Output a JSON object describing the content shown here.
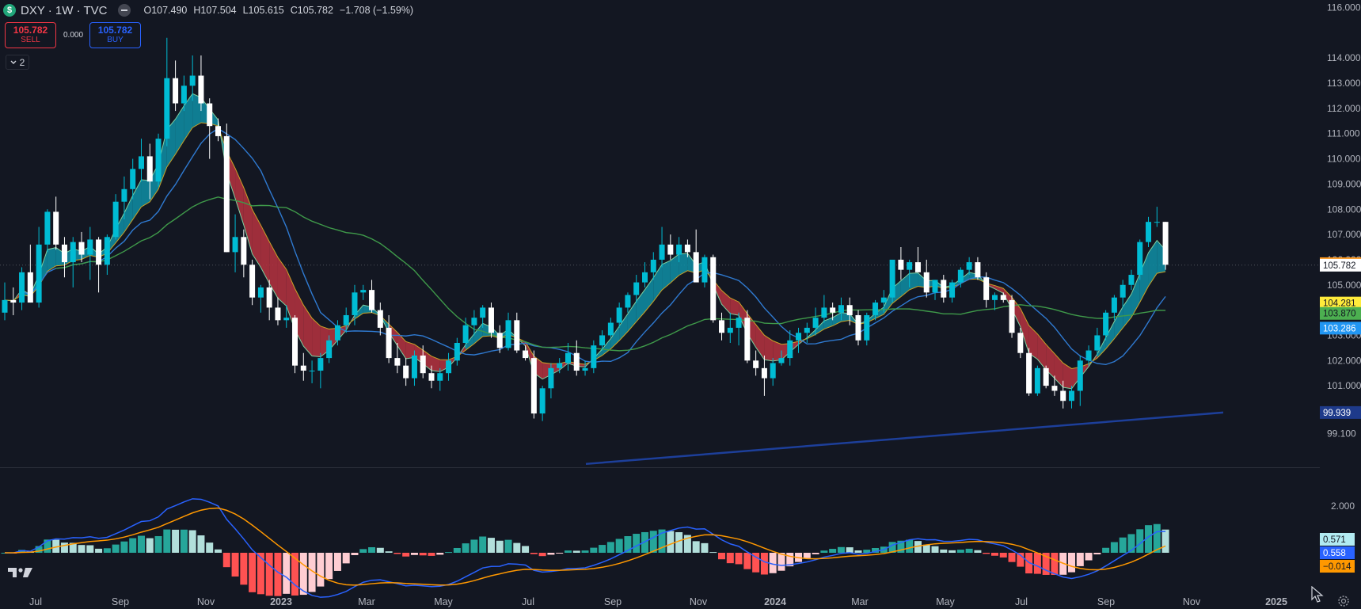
{
  "header": {
    "symbol_icon": "$",
    "symbol": "DXY · 1W · TVC",
    "open": "O107.490",
    "high": "H107.504",
    "low": "L105.615",
    "close": "C105.782",
    "change": "−1.708 (−1.59%)"
  },
  "trade": {
    "sell_price": "105.782",
    "sell_label": "SELL",
    "spread": "0.000",
    "buy_price": "105.782",
    "buy_label": "BUY"
  },
  "indicators_toggle": {
    "count": "2",
    "icon": "chevron-down-icon"
  },
  "colors": {
    "background": "#131722",
    "up_candle": "#00bcd4",
    "down_candle": "#ffffff",
    "cloud_up": "#0f8fa6",
    "cloud_down": "#b7333f",
    "ma_fast": "#2f7ad1",
    "ma_mid": "#3f9a4a",
    "ma_slow": "#1d3f9a",
    "macd_line": "#2962ff",
    "signal_line": "#ff9800"
  },
  "chart_data": {
    "type": "candlestick",
    "symbol": "DXY",
    "interval": "1W",
    "y_axis": {
      "ticks": [
        "116.000",
        "114.000",
        "113.000",
        "112.000",
        "111.000",
        "110.000",
        "109.000",
        "108.000",
        "107.000",
        "106.000",
        "105.000",
        "103.000",
        "102.000",
        "101.000",
        "99.100"
      ],
      "tick_values": [
        116,
        114,
        113,
        112,
        111,
        110,
        109,
        108,
        107,
        106,
        105,
        103,
        102,
        101,
        99.1
      ],
      "range": [
        97.8,
        116.3
      ]
    },
    "x_axis": {
      "labels": [
        "Jul",
        "Sep",
        "Nov",
        "2023",
        "Mar",
        "May",
        "Jul",
        "Sep",
        "Nov",
        "2024",
        "Mar",
        "May",
        "Jul",
        "Sep",
        "Nov",
        "2025"
      ],
      "bold": [
        "2023",
        "2024",
        "2025"
      ]
    },
    "candles_ohlc": [
      [
        103.9,
        105.1,
        103.6,
        104.4
      ],
      [
        104.4,
        104.9,
        103.8,
        104.3
      ],
      [
        104.3,
        105.7,
        104.0,
        105.5
      ],
      [
        105.5,
        106.6,
        104.3,
        104.3
      ],
      [
        104.3,
        107.3,
        104.1,
        106.6
      ],
      [
        106.6,
        108.0,
        106.3,
        107.9
      ],
      [
        107.9,
        108.5,
        106.4,
        106.6
      ],
      [
        106.6,
        106.9,
        105.3,
        105.9
      ],
      [
        105.9,
        106.9,
        104.9,
        106.7
      ],
      [
        106.7,
        107.1,
        105.9,
        106.2
      ],
      [
        106.2,
        107.3,
        105.2,
        106.8
      ],
      [
        106.8,
        106.9,
        104.7,
        105.8
      ],
      [
        105.8,
        107.0,
        105.4,
        106.9
      ],
      [
        106.9,
        108.6,
        106.8,
        108.3
      ],
      [
        108.3,
        109.3,
        107.6,
        108.8
      ],
      [
        108.8,
        110.0,
        108.4,
        109.6
      ],
      [
        109.6,
        110.8,
        109.1,
        110.1
      ],
      [
        110.1,
        110.6,
        108.4,
        109.1
      ],
      [
        109.1,
        111.0,
        108.9,
        110.8
      ],
      [
        110.8,
        114.8,
        110.5,
        113.2
      ],
      [
        113.2,
        113.9,
        111.9,
        112.2
      ],
      [
        112.2,
        113.3,
        111.9,
        112.9
      ],
      [
        112.9,
        114.1,
        112.3,
        113.3
      ],
      [
        113.3,
        114.1,
        111.9,
        112.2
      ],
      [
        112.2,
        112.4,
        110.0,
        111.3
      ],
      [
        111.3,
        111.6,
        110.7,
        110.9
      ],
      [
        110.9,
        111.4,
        106.3,
        106.3
      ],
      [
        106.3,
        107.8,
        105.5,
        106.9
      ],
      [
        106.9,
        107.2,
        105.3,
        105.8
      ],
      [
        105.8,
        106.0,
        104.2,
        104.5
      ],
      [
        104.5,
        105.0,
        103.9,
        104.9
      ],
      [
        104.9,
        105.2,
        103.6,
        104.1
      ],
      [
        104.1,
        104.5,
        103.4,
        103.6
      ],
      [
        103.6,
        104.2,
        103.3,
        103.7
      ],
      [
        103.7,
        103.8,
        101.5,
        101.8
      ],
      [
        101.8,
        102.3,
        101.2,
        101.6
      ],
      [
        101.6,
        102.0,
        101.1,
        101.6
      ],
      [
        101.6,
        102.3,
        100.9,
        102.1
      ],
      [
        102.1,
        103.0,
        101.9,
        102.8
      ],
      [
        102.8,
        103.6,
        102.6,
        103.4
      ],
      [
        103.4,
        104.1,
        103.1,
        103.8
      ],
      [
        103.8,
        105.0,
        103.4,
        104.7
      ],
      [
        104.7,
        105.0,
        104.4,
        104.8
      ],
      [
        104.8,
        105.2,
        103.9,
        104.0
      ],
      [
        104.0,
        104.3,
        103.0,
        103.3
      ],
      [
        103.3,
        103.8,
        101.9,
        102.1
      ],
      [
        102.1,
        102.7,
        101.5,
        101.8
      ],
      [
        101.8,
        102.1,
        101.0,
        101.3
      ],
      [
        101.3,
        102.4,
        101.0,
        102.2
      ],
      [
        102.2,
        102.6,
        101.3,
        101.5
      ],
      [
        101.5,
        101.8,
        100.9,
        101.2
      ],
      [
        101.2,
        101.7,
        100.8,
        101.5
      ],
      [
        101.5,
        102.3,
        101.2,
        102.0
      ],
      [
        102.0,
        102.9,
        101.8,
        102.7
      ],
      [
        102.7,
        103.7,
        102.5,
        103.4
      ],
      [
        103.4,
        104.0,
        103.0,
        103.7
      ],
      [
        103.7,
        104.2,
        103.3,
        104.1
      ],
      [
        104.1,
        104.3,
        102.9,
        103.1
      ],
      [
        103.1,
        103.4,
        102.3,
        102.5
      ],
      [
        102.5,
        103.9,
        102.4,
        103.6
      ],
      [
        103.6,
        103.9,
        102.3,
        102.4
      ],
      [
        102.4,
        102.6,
        102.0,
        102.1
      ],
      [
        102.1,
        102.4,
        99.7,
        99.9
      ],
      [
        99.9,
        101.0,
        99.6,
        100.9
      ],
      [
        100.9,
        101.9,
        100.5,
        101.7
      ],
      [
        101.7,
        102.1,
        101.5,
        101.9
      ],
      [
        101.9,
        102.7,
        101.6,
        102.3
      ],
      [
        102.3,
        102.8,
        101.4,
        101.6
      ],
      [
        101.6,
        102.0,
        101.4,
        101.7
      ],
      [
        101.7,
        102.8,
        101.5,
        102.6
      ],
      [
        102.6,
        103.2,
        102.4,
        103.0
      ],
      [
        103.0,
        103.7,
        102.9,
        103.5
      ],
      [
        103.5,
        104.3,
        103.3,
        104.1
      ],
      [
        104.1,
        104.7,
        103.9,
        104.6
      ],
      [
        104.6,
        105.4,
        104.3,
        105.1
      ],
      [
        105.1,
        105.9,
        104.9,
        105.5
      ],
      [
        105.5,
        106.3,
        105.2,
        106.0
      ],
      [
        106.0,
        107.3,
        105.7,
        106.6
      ],
      [
        106.6,
        107.0,
        106.0,
        106.2
      ],
      [
        106.2,
        106.9,
        105.9,
        106.6
      ],
      [
        106.6,
        106.8,
        106.1,
        106.3
      ],
      [
        106.3,
        107.2,
        105.2,
        105.1
      ],
      [
        105.1,
        106.2,
        104.9,
        106.1
      ],
      [
        106.1,
        106.2,
        103.5,
        103.6
      ],
      [
        103.6,
        103.9,
        102.8,
        103.1
      ],
      [
        103.1,
        103.9,
        102.7,
        103.3
      ],
      [
        103.3,
        103.9,
        102.6,
        103.7
      ],
      [
        103.7,
        104.0,
        101.9,
        102.0
      ],
      [
        102.0,
        102.4,
        101.4,
        101.7
      ],
      [
        101.7,
        102.2,
        100.6,
        101.3
      ],
      [
        101.3,
        102.1,
        101.0,
        101.9
      ],
      [
        101.9,
        102.4,
        101.8,
        102.1
      ],
      [
        102.1,
        103.2,
        101.8,
        102.8
      ],
      [
        102.8,
        103.3,
        102.3,
        103.1
      ],
      [
        103.1,
        103.5,
        102.7,
        103.3
      ],
      [
        103.3,
        104.1,
        103.0,
        103.7
      ],
      [
        103.7,
        104.6,
        103.5,
        104.1
      ],
      [
        104.1,
        104.3,
        103.6,
        103.9
      ],
      [
        103.9,
        104.5,
        103.6,
        104.2
      ],
      [
        104.2,
        104.5,
        103.4,
        103.8
      ],
      [
        103.8,
        104.0,
        102.6,
        102.8
      ],
      [
        102.8,
        103.9,
        102.6,
        103.8
      ],
      [
        103.8,
        104.4,
        103.6,
        104.3
      ],
      [
        104.3,
        104.8,
        103.9,
        104.5
      ],
      [
        104.5,
        105.4,
        104.3,
        106.0
      ],
      [
        106.0,
        106.5,
        105.2,
        105.6
      ],
      [
        105.6,
        106.0,
        104.9,
        105.9
      ],
      [
        105.9,
        106.5,
        105.5,
        105.5
      ],
      [
        105.5,
        106.0,
        104.5,
        104.7
      ],
      [
        104.7,
        105.2,
        104.4,
        105.2
      ],
      [
        105.2,
        105.4,
        104.3,
        104.5
      ],
      [
        104.5,
        105.2,
        104.3,
        105.1
      ],
      [
        105.1,
        105.7,
        104.9,
        105.6
      ],
      [
        105.6,
        106.1,
        105.4,
        105.9
      ],
      [
        105.9,
        106.1,
        105.2,
        105.3
      ],
      [
        105.3,
        105.5,
        104.1,
        104.4
      ],
      [
        104.4,
        104.7,
        104.0,
        104.6
      ],
      [
        104.6,
        104.7,
        104.3,
        104.4
      ],
      [
        104.4,
        104.6,
        102.9,
        103.1
      ],
      [
        103.1,
        103.3,
        102.1,
        102.3
      ],
      [
        102.3,
        102.5,
        100.6,
        100.7
      ],
      [
        100.7,
        101.8,
        100.6,
        101.7
      ],
      [
        101.7,
        101.8,
        100.9,
        101.0
      ],
      [
        101.0,
        101.4,
        100.6,
        100.8
      ],
      [
        100.8,
        101.2,
        100.1,
        100.4
      ],
      [
        100.4,
        101.0,
        100.1,
        100.8
      ],
      [
        100.8,
        102.2,
        100.2,
        102.0
      ],
      [
        102.0,
        102.6,
        101.8,
        102.4
      ],
      [
        102.4,
        103.3,
        102.2,
        103.0
      ],
      [
        103.0,
        104.0,
        102.8,
        103.9
      ],
      [
        103.9,
        104.6,
        103.6,
        104.5
      ],
      [
        104.5,
        105.2,
        104.1,
        105.0
      ],
      [
        105.0,
        105.6,
        104.8,
        105.4
      ],
      [
        105.4,
        106.8,
        105.2,
        106.7
      ],
      [
        106.7,
        107.7,
        106.5,
        107.5
      ],
      [
        107.5,
        108.1,
        107.3,
        107.5
      ],
      [
        107.5,
        107.5,
        105.6,
        105.8
      ]
    ],
    "price_labels": [
      {
        "value": "105.843",
        "bg": "#f7931a",
        "fg": "#131722"
      },
      {
        "value": "105.782",
        "bg": "#ffffff",
        "fg": "#131722"
      },
      {
        "value": "104.281",
        "bg": "#ffeb3b",
        "fg": "#131722"
      },
      {
        "value": "103.870",
        "bg": "#4caf50",
        "fg": "#131722"
      },
      {
        "value": "103.286",
        "bg": "#2196f3",
        "fg": "#ffffff"
      },
      {
        "value": "99.939",
        "bg": "#1e3a8a",
        "fg": "#ffffff"
      }
    ],
    "macd_panel": {
      "axis_tick": "2.000",
      "labels": [
        {
          "value": "0.571",
          "bg": "#b2ebf2",
          "fg": "#131722"
        },
        {
          "value": "0.558",
          "bg": "#2962ff",
          "fg": "#ffffff"
        },
        {
          "value": "−0.014",
          "bg": "#ff9800",
          "fg": "#131722"
        }
      ]
    }
  }
}
